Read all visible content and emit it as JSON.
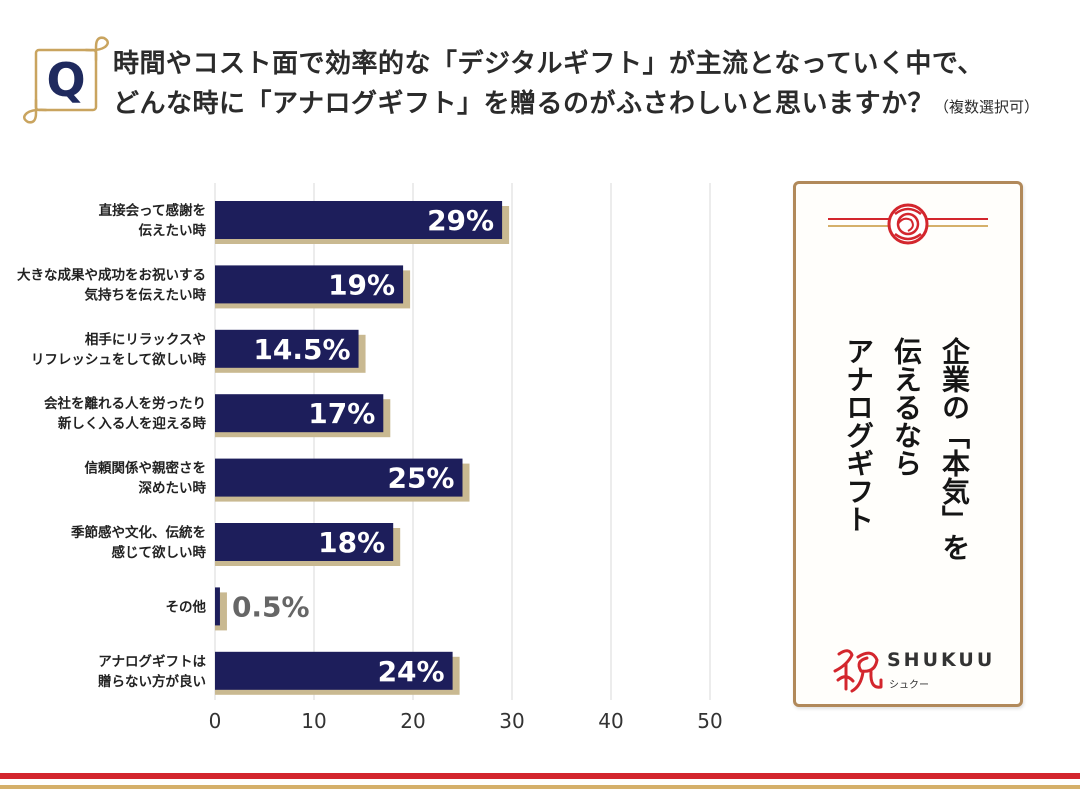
{
  "question": {
    "badge": "Q",
    "line1": "時間やコスト面で効率的な「デジタルギフト」が主流となっていく中で、",
    "line2": "どんな時に「アナログギフト」を贈るのがふさわしいと思いますか？",
    "note": "（複数選択可）"
  },
  "chart_data": {
    "type": "bar",
    "categories": [
      [
        "直接会って感謝を",
        "伝えたい時"
      ],
      [
        "大きな成果や成功をお祝いする",
        "気持ちを伝えたい時"
      ],
      [
        "相手にリラックスや",
        "リフレッシュをして欲しい時"
      ],
      [
        "会社を離れる人を労ったり",
        "新しく入る人を迎える時"
      ],
      [
        "信頼関係や親密さを",
        "深めたい時"
      ],
      [
        "季節感や文化、伝統を",
        "感じて欲しい時"
      ],
      [
        "その他"
      ],
      [
        "アナログギフトは",
        "贈らない方が良い"
      ]
    ],
    "values": [
      29,
      19,
      14.5,
      17,
      25,
      18,
      0.5,
      24
    ],
    "value_labels": [
      "29%",
      "19%",
      "14.5%",
      "17%",
      "25%",
      "18%",
      "0.5%",
      "24%"
    ],
    "xlim": [
      0,
      50
    ],
    "xticks": [
      0,
      10,
      20,
      30,
      40,
      50
    ],
    "grid": true
  },
  "panel": {
    "message_lines": [
      "企業の「本気」を",
      "伝えるなら",
      "アナログギフト"
    ],
    "logo_mark": "祝",
    "logo_name": "SHUKUU",
    "logo_kana": "シュクー"
  },
  "colors": {
    "bar": "#1d1e5b",
    "bar_shadow": "#c9b991",
    "inside_label": "#ffffff",
    "outside_label": "#666666",
    "category_label": "#222222",
    "gridline": "#d9d9d9",
    "accent_red": "#d3262d",
    "accent_gold": "#d5b06a"
  }
}
